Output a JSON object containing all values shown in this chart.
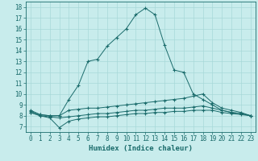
{
  "xlabel": "Humidex (Indice chaleur)",
  "bg_color": "#c8ecec",
  "grid_color": "#a8d8d8",
  "line_color": "#1a6b6b",
  "xlim": [
    -0.5,
    23.5
  ],
  "ylim": [
    6.5,
    18.5
  ],
  "yticks": [
    7,
    8,
    9,
    10,
    11,
    12,
    13,
    14,
    15,
    16,
    17,
    18
  ],
  "xticks": [
    0,
    1,
    2,
    3,
    4,
    5,
    6,
    7,
    8,
    9,
    10,
    11,
    12,
    13,
    14,
    15,
    16,
    17,
    18,
    19,
    20,
    21,
    22,
    23
  ],
  "line1_x": [
    0,
    1,
    2,
    3,
    4,
    5,
    6,
    7,
    8,
    9,
    10,
    11,
    12,
    13,
    14,
    15,
    16,
    17,
    18,
    19,
    20,
    21,
    22,
    23
  ],
  "line1_y": [
    8.5,
    8.1,
    8.0,
    8.0,
    9.5,
    10.8,
    13.0,
    13.2,
    14.4,
    15.2,
    16.0,
    17.3,
    17.9,
    17.3,
    14.5,
    12.2,
    12.0,
    10.0,
    9.5,
    9.0,
    8.5,
    8.3,
    8.2,
    8.0
  ],
  "line2_x": [
    0,
    1,
    2,
    3,
    4,
    5,
    6,
    7,
    8,
    9,
    10,
    11,
    12,
    13,
    14,
    15,
    16,
    17,
    18,
    19,
    20,
    21,
    22,
    23
  ],
  "line2_y": [
    8.4,
    8.1,
    8.0,
    8.0,
    8.5,
    8.6,
    8.7,
    8.7,
    8.8,
    8.9,
    9.0,
    9.1,
    9.2,
    9.3,
    9.4,
    9.5,
    9.6,
    9.8,
    10.0,
    9.2,
    8.7,
    8.5,
    8.3,
    8.0
  ],
  "line3_x": [
    0,
    1,
    2,
    3,
    4,
    5,
    6,
    7,
    8,
    9,
    10,
    11,
    12,
    13,
    14,
    15,
    16,
    17,
    18,
    19,
    20,
    21,
    22,
    23
  ],
  "line3_y": [
    8.3,
    8.0,
    7.9,
    7.8,
    7.9,
    8.0,
    8.1,
    8.2,
    8.2,
    8.3,
    8.4,
    8.5,
    8.5,
    8.6,
    8.7,
    8.7,
    8.7,
    8.8,
    8.9,
    8.7,
    8.5,
    8.3,
    8.2,
    8.0
  ],
  "line4_x": [
    0,
    1,
    2,
    3,
    4,
    5,
    6,
    7,
    8,
    9,
    10,
    11,
    12,
    13,
    14,
    15,
    16,
    17,
    18,
    19,
    20,
    21,
    22,
    23
  ],
  "line4_y": [
    8.3,
    8.0,
    7.8,
    6.9,
    7.5,
    7.7,
    7.8,
    7.9,
    7.9,
    8.0,
    8.1,
    8.2,
    8.2,
    8.3,
    8.3,
    8.4,
    8.4,
    8.5,
    8.5,
    8.5,
    8.3,
    8.2,
    8.1,
    8.0
  ]
}
